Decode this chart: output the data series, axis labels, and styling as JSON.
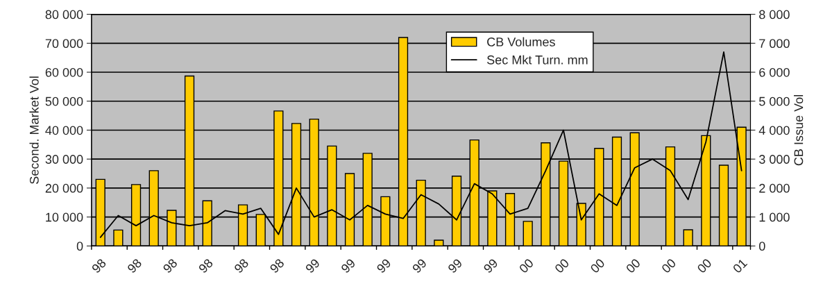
{
  "chart_data": {
    "type": "bar",
    "ylabel": "Second. Market Vol",
    "y2label": "CB Issue Vol",
    "categories": [
      "98",
      null,
      "98",
      null,
      "98",
      null,
      "98",
      null,
      "98",
      null,
      "98",
      null,
      "99",
      null,
      "99",
      null,
      "99",
      null,
      "99",
      null,
      "99",
      null,
      "99",
      null,
      "00",
      null,
      "00",
      null,
      "00",
      null,
      "00",
      null,
      "00",
      null,
      "00",
      null,
      "01"
    ],
    "series": [
      {
        "name": "CB Volumes",
        "axis": "y2",
        "color": "#ffcc00",
        "values": [
          2300,
          550,
          2120,
          2600,
          1230,
          5870,
          1560,
          null,
          1420,
          1090,
          4660,
          4230,
          4380,
          3450,
          2500,
          3200,
          1700,
          7200,
          2270,
          200,
          2410,
          3660,
          1900,
          1810,
          850,
          3560,
          2930,
          1470,
          3370,
          3760,
          3910,
          null,
          3420,
          560,
          3810,
          2790,
          4100
        ]
      },
      {
        "name": "Sec Mkt Turn. mm",
        "type": "line",
        "axis": "y",
        "color": "#000000",
        "values": [
          3000,
          10500,
          7000,
          10500,
          8000,
          7000,
          8000,
          12200,
          11000,
          13000,
          4000,
          20000,
          10000,
          12500,
          9000,
          14000,
          11000,
          9500,
          17700,
          14500,
          9000,
          21500,
          18000,
          11000,
          13000,
          26000,
          40000,
          9000,
          18000,
          14000,
          27000,
          30000,
          26000,
          16000,
          36000,
          67000,
          26000
        ]
      }
    ],
    "ylim": [
      0,
      80000
    ],
    "yticks": [
      0,
      {
        "value": 10000,
        "label": "10 000"
      },
      {
        "value": 20000,
        "label": "20 000"
      },
      {
        "value": 30000,
        "label": "30 000"
      },
      {
        "value": 40000,
        "label": "40 000"
      },
      {
        "value": 50000,
        "label": "50 000"
      },
      {
        "value": 60000,
        "label": "60 000"
      },
      {
        "value": 70000,
        "label": "70 000"
      },
      {
        "value": 80000,
        "label": "80 000"
      }
    ],
    "y2lim": [
      0,
      8000
    ],
    "y2ticks": [
      0,
      {
        "value": 1000,
        "label": "1 000"
      },
      {
        "value": 2000,
        "label": "2 000"
      },
      {
        "value": 3000,
        "label": "3 000"
      },
      {
        "value": 4000,
        "label": "4 000"
      },
      {
        "value": 5000,
        "label": "5 000"
      },
      {
        "value": 6000,
        "label": "6 000"
      },
      {
        "value": 7000,
        "label": "7 000"
      },
      {
        "value": 8000,
        "label": "8 000"
      }
    ],
    "grid": "y",
    "legend": "top"
  }
}
